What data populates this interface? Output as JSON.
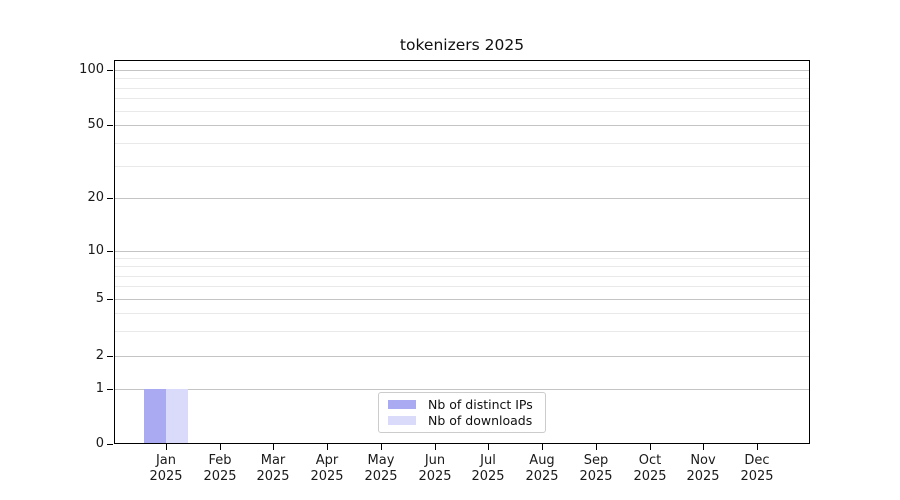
{
  "chart_data": {
    "type": "bar",
    "title": "tokenizers 2025",
    "categories": [
      {
        "line1": "Jan",
        "line2": "2025"
      },
      {
        "line1": "Feb",
        "line2": "2025"
      },
      {
        "line1": "Mar",
        "line2": "2025"
      },
      {
        "line1": "Apr",
        "line2": "2025"
      },
      {
        "line1": "May",
        "line2": "2025"
      },
      {
        "line1": "Jun",
        "line2": "2025"
      },
      {
        "line1": "Jul",
        "line2": "2025"
      },
      {
        "line1": "Aug",
        "line2": "2025"
      },
      {
        "line1": "Sep",
        "line2": "2025"
      },
      {
        "line1": "Oct",
        "line2": "2025"
      },
      {
        "line1": "Nov",
        "line2": "2025"
      },
      {
        "line1": "Dec",
        "line2": "2025"
      }
    ],
    "series": [
      {
        "name": "Nb of distinct IPs",
        "color": "#aaaaf2",
        "values": [
          1,
          0,
          0,
          0,
          0,
          0,
          0,
          0,
          0,
          0,
          0,
          0
        ]
      },
      {
        "name": "Nb of downloads",
        "color": "#dadafa",
        "values": [
          1,
          0,
          0,
          0,
          0,
          0,
          0,
          0,
          0,
          0,
          0,
          0
        ]
      }
    ],
    "y_axis": {
      "scale": "symlog",
      "major_ticks": [
        0,
        1,
        2,
        5,
        10,
        20,
        50,
        100
      ],
      "minor_gridlines": [
        3,
        4,
        6,
        7,
        8,
        9,
        30,
        40,
        60,
        70,
        80,
        90
      ],
      "ylim_top_value": 115
    },
    "legend": {
      "position": "lower center"
    }
  },
  "style": {
    "background": "#ffffff",
    "grid_major_color": "#c4c4c4",
    "grid_minor_color": "#e9e9e9",
    "spine_color": "#000000",
    "text_color": "#1a1a1a",
    "legend_border_color": "#cccccc"
  }
}
